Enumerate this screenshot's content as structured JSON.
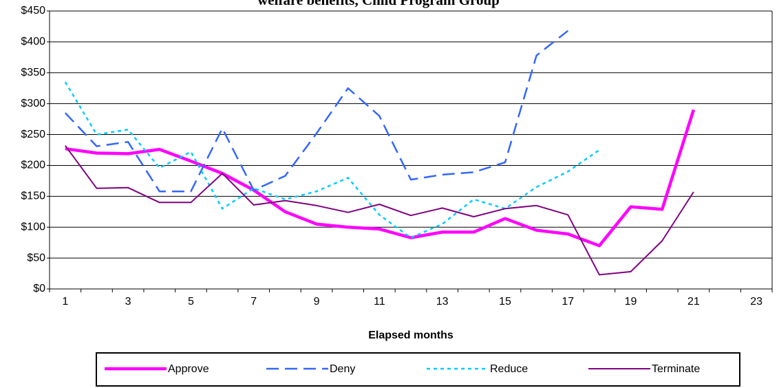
{
  "chart_data": {
    "type": "line",
    "title": "welfare benefits, Child Program Group",
    "x_label": "Elapsed months",
    "categories": [
      "1",
      null,
      "3",
      null,
      "5",
      null,
      "7",
      null,
      "9",
      null,
      "11",
      null,
      "13",
      null,
      "15",
      null,
      "17",
      null,
      "19",
      null,
      "21",
      null,
      "23"
    ],
    "ylim": [
      0,
      450
    ],
    "yticks": [
      {
        "value": 0,
        "label": "$0"
      },
      {
        "value": 50,
        "label": "$50"
      },
      {
        "value": 100,
        "label": "$100"
      },
      {
        "value": 150,
        "label": "$150"
      },
      {
        "value": 200,
        "label": "$200"
      },
      {
        "value": 250,
        "label": "$250"
      },
      {
        "value": 300,
        "label": "$300"
      },
      {
        "value": 350,
        "label": "$350"
      },
      {
        "value": 400,
        "label": "$400"
      },
      {
        "value": 450,
        "label": "$450"
      }
    ],
    "grid": true,
    "legend": "bottom",
    "series": [
      {
        "name": "Approve",
        "color": "#ff00ff",
        "style": "thick",
        "values": [
          227,
          220,
          219,
          226,
          207,
          187,
          160,
          125,
          105,
          100,
          97,
          83,
          92,
          92,
          114,
          95,
          89,
          70,
          133,
          129,
          290,
          null,
          null
        ]
      },
      {
        "name": "Deny",
        "color": "#3366ff",
        "style": "dash",
        "values": [
          285,
          231,
          238,
          158,
          158,
          260,
          160,
          183,
          252,
          325,
          280,
          177,
          185,
          189,
          205,
          378,
          418,
          null,
          null,
          null,
          null,
          null,
          null
        ]
      },
      {
        "name": "Reduce",
        "color": "#00ccff",
        "style": "dot",
        "values": [
          335,
          250,
          258,
          196,
          222,
          130,
          163,
          145,
          158,
          180,
          120,
          83,
          105,
          145,
          130,
          165,
          190,
          225,
          null,
          null,
          null,
          null,
          null
        ]
      },
      {
        "name": "Terminate",
        "color": "#800080",
        "style": "solid",
        "values": [
          232,
          163,
          164,
          140,
          140,
          187,
          136,
          143,
          135,
          124,
          137,
          119,
          131,
          117,
          130,
          135,
          120,
          23,
          28,
          78,
          157,
          null,
          null
        ]
      }
    ]
  }
}
